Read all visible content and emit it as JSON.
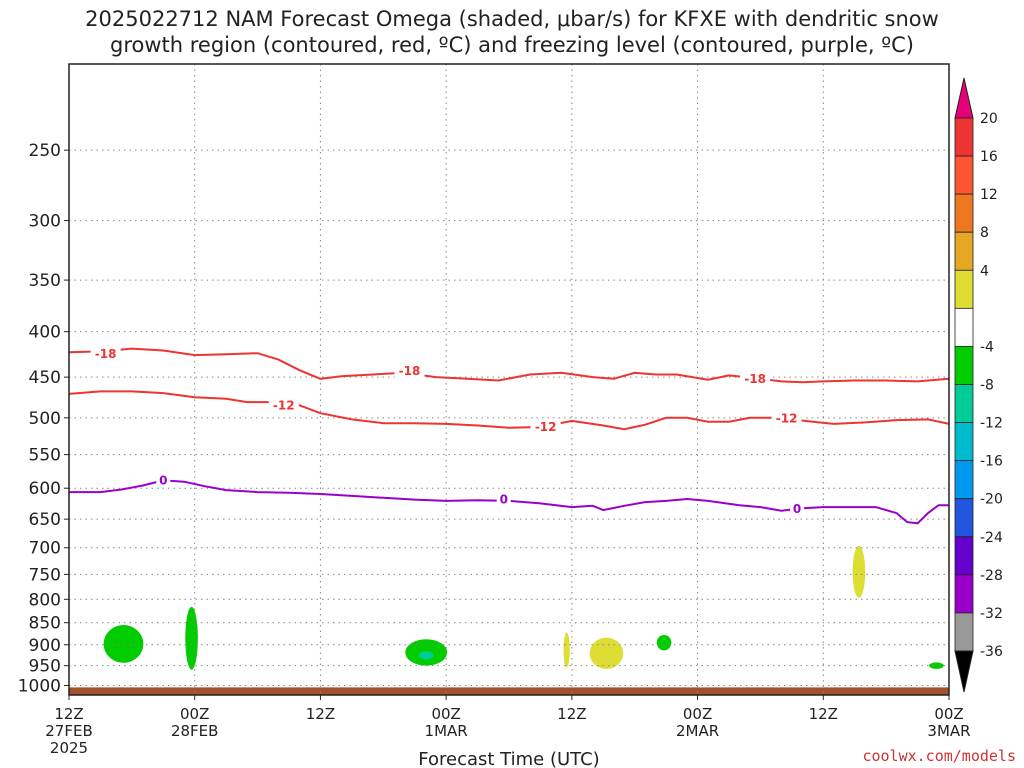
{
  "title": {
    "line1": "2025022712 NAM Forecast Omega (shaded, μbar/s) for KFXE with dendritic snow",
    "line2": "growth region (contoured, red, ºC) and freezing level (contoured, purple, ºC)"
  },
  "chart_data": {
    "type": "time-height cross section",
    "xlabel": "Forecast Time (UTC)",
    "x_ticks": [
      {
        "label": "12Z",
        "sub": "27FEB",
        "sub2": "2025",
        "hour": 0
      },
      {
        "label": "00Z",
        "sub": "28FEB",
        "sub2": "",
        "hour": 12
      },
      {
        "label": "12Z",
        "sub": "",
        "sub2": "",
        "hour": 24
      },
      {
        "label": "00Z",
        "sub": "1MAR",
        "sub2": "",
        "hour": 36
      },
      {
        "label": "12Z",
        "sub": "",
        "sub2": "",
        "hour": 48
      },
      {
        "label": "00Z",
        "sub": "2MAR",
        "sub2": "",
        "hour": 60
      },
      {
        "label": "12Z",
        "sub": "",
        "sub2": "",
        "hour": 72
      },
      {
        "label": "00Z",
        "sub": "3MAR",
        "sub2": "",
        "hour": 84
      }
    ],
    "x_range_hours": [
      0,
      84
    ],
    "y_ticks": [
      250,
      300,
      350,
      400,
      450,
      500,
      550,
      600,
      650,
      700,
      750,
      800,
      850,
      900,
      950,
      1000
    ],
    "y_range_hpa": [
      200,
      1025
    ],
    "y_scale": "log-pressure",
    "grid": true,
    "contours": [
      {
        "name": "-18",
        "color": "#ee3333",
        "labels": [
          {
            "hour": 3.5,
            "p": 424
          },
          {
            "hour": 32.5,
            "p": 443
          },
          {
            "hour": 65.5,
            "p": 452
          }
        ],
        "points": [
          [
            0,
            422
          ],
          [
            3,
            421
          ],
          [
            6,
            418
          ],
          [
            9,
            420
          ],
          [
            12,
            425
          ],
          [
            15,
            424
          ],
          [
            18,
            423
          ],
          [
            20,
            430
          ],
          [
            22,
            442
          ],
          [
            24,
            452
          ],
          [
            26,
            449
          ],
          [
            29,
            447
          ],
          [
            32,
            445
          ],
          [
            35,
            450
          ],
          [
            38,
            452
          ],
          [
            41,
            454
          ],
          [
            44,
            447
          ],
          [
            47,
            445
          ],
          [
            50,
            450
          ],
          [
            52,
            452
          ],
          [
            54,
            445
          ],
          [
            56,
            447
          ],
          [
            58,
            447
          ],
          [
            61,
            453
          ],
          [
            63,
            448
          ],
          [
            66,
            452
          ],
          [
            68,
            455
          ],
          [
            70,
            456
          ],
          [
            72,
            455
          ],
          [
            75,
            454
          ],
          [
            78,
            454
          ],
          [
            81,
            455
          ],
          [
            84,
            452
          ]
        ]
      },
      {
        "name": "-12",
        "color": "#ee3333",
        "labels": [
          {
            "hour": 20.5,
            "p": 484
          },
          {
            "hour": 45.5,
            "p": 512
          },
          {
            "hour": 68.5,
            "p": 501
          }
        ],
        "points": [
          [
            0,
            470
          ],
          [
            3,
            467
          ],
          [
            6,
            467
          ],
          [
            9,
            469
          ],
          [
            12,
            474
          ],
          [
            15,
            476
          ],
          [
            17,
            480
          ],
          [
            19,
            480
          ],
          [
            22,
            484
          ],
          [
            24,
            494
          ],
          [
            27,
            502
          ],
          [
            30,
            507
          ],
          [
            33,
            507
          ],
          [
            36,
            508
          ],
          [
            39,
            510
          ],
          [
            42,
            513
          ],
          [
            45,
            512
          ],
          [
            48,
            504
          ],
          [
            51,
            510
          ],
          [
            53,
            515
          ],
          [
            55,
            509
          ],
          [
            57,
            500
          ],
          [
            59,
            500
          ],
          [
            61,
            505
          ],
          [
            63,
            505
          ],
          [
            65,
            500
          ],
          [
            67,
            500
          ],
          [
            69,
            502
          ],
          [
            71,
            505
          ],
          [
            73,
            508
          ],
          [
            76,
            506
          ],
          [
            79,
            503
          ],
          [
            82,
            502
          ],
          [
            84,
            508
          ]
        ]
      },
      {
        "name": "0",
        "color": "#9900cc",
        "labels": [
          {
            "hour": 9,
            "p": 588
          },
          {
            "hour": 41.5,
            "p": 618
          },
          {
            "hour": 69.5,
            "p": 633
          }
        ],
        "points": [
          [
            0,
            606
          ],
          [
            3,
            606
          ],
          [
            5,
            602
          ],
          [
            7,
            596
          ],
          [
            9,
            588
          ],
          [
            11,
            590
          ],
          [
            13,
            597
          ],
          [
            15,
            603
          ],
          [
            18,
            606
          ],
          [
            21,
            607
          ],
          [
            24,
            609
          ],
          [
            27,
            612
          ],
          [
            30,
            615
          ],
          [
            33,
            618
          ],
          [
            36,
            620
          ],
          [
            39,
            619
          ],
          [
            42,
            620
          ],
          [
            45,
            624
          ],
          [
            48,
            630
          ],
          [
            50,
            628
          ],
          [
            51,
            635
          ],
          [
            53,
            628
          ],
          [
            55,
            622
          ],
          [
            57,
            620
          ],
          [
            59,
            617
          ],
          [
            61,
            620
          ],
          [
            64,
            627
          ],
          [
            66,
            630
          ],
          [
            68,
            636
          ],
          [
            70,
            632
          ],
          [
            72,
            630
          ],
          [
            75,
            630
          ],
          [
            77,
            630
          ],
          [
            79,
            640
          ],
          [
            80,
            655
          ],
          [
            81,
            657
          ],
          [
            82,
            640
          ],
          [
            83,
            627
          ],
          [
            84,
            627
          ]
        ]
      }
    ],
    "shaded_regions": [
      {
        "level": "-8",
        "color": "#00cc00",
        "hour": 5.2,
        "p": 898,
        "dh": 1.9,
        "dp": 45
      },
      {
        "level": "-8",
        "color": "#00cc00",
        "hour": 11.7,
        "p": 885,
        "dh": 0.6,
        "dp": 75
      },
      {
        "level": "-8",
        "color": "#00cc00",
        "hour": 34.1,
        "p": 918,
        "dh": 2.0,
        "dp": 32
      },
      {
        "level": "-12",
        "color": "#00cc99",
        "hour": 34.1,
        "p": 925,
        "dh": 0.7,
        "dp": 10
      },
      {
        "level": "-8",
        "color": "#00cc00",
        "hour": 56.8,
        "p": 895,
        "dh": 0.7,
        "dp": 18
      },
      {
        "level": "-8",
        "color": "#00cc00",
        "hour": 82.8,
        "p": 950,
        "dh": 0.7,
        "dp": 8
      },
      {
        "level": "4",
        "color": "#dddd33",
        "hour": 47.5,
        "p": 912,
        "dh": 0.3,
        "dp": 42
      },
      {
        "level": "4",
        "color": "#dddd33",
        "hour": 51.3,
        "p": 920,
        "dh": 1.6,
        "dp": 38
      },
      {
        "level": "4",
        "color": "#dddd33",
        "hour": 75.4,
        "p": 745,
        "dh": 0.6,
        "dp": 52
      }
    ],
    "terrain_color": "#a0522d",
    "colorbar": {
      "labels": [
        "20",
        "16",
        "12",
        "8",
        "4",
        "-4",
        "-8",
        "-12",
        "-16",
        "-20",
        "-24",
        "-28",
        "-32",
        "-36"
      ],
      "colors": [
        "#e6007a",
        "#ee3333",
        "#ff5533",
        "#ee7722",
        "#e6a823",
        "#dddd33",
        "#ffffff",
        "#00cc00",
        "#00cc99",
        "#00bbcc",
        "#0099ee",
        "#2255dd",
        "#6600cc",
        "#9900cc",
        "#999999",
        "#000000"
      ]
    }
  },
  "credit": "coolwx.com/models"
}
